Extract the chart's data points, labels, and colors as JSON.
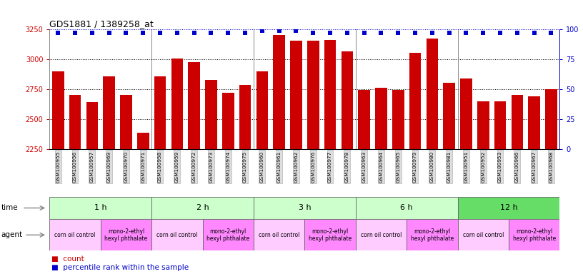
{
  "title": "GDS1881 / 1389258_at",
  "samples": [
    "GSM100955",
    "GSM100956",
    "GSM100957",
    "GSM100969",
    "GSM100970",
    "GSM100971",
    "GSM100958",
    "GSM100959",
    "GSM100972",
    "GSM100973",
    "GSM100974",
    "GSM100975",
    "GSM100960",
    "GSM100961",
    "GSM100962",
    "GSM100976",
    "GSM100977",
    "GSM100978",
    "GSM100963",
    "GSM100964",
    "GSM100965",
    "GSM100979",
    "GSM100980",
    "GSM100981",
    "GSM100951",
    "GSM100952",
    "GSM100953",
    "GSM100966",
    "GSM100967",
    "GSM100968"
  ],
  "counts": [
    2900,
    2700,
    2640,
    2860,
    2700,
    2385,
    2860,
    3005,
    2975,
    2830,
    2720,
    2785,
    2900,
    3205,
    3155,
    3155,
    3165,
    3065,
    2745,
    2760,
    2745,
    3055,
    3175,
    2805,
    2840,
    2650,
    2650,
    2700,
    2690,
    2750
  ],
  "percentile": [
    97,
    97,
    97,
    97,
    97,
    97,
    97,
    97,
    97,
    97,
    97,
    97,
    99,
    99,
    99,
    97,
    97,
    97,
    97,
    97,
    97,
    97,
    97,
    97,
    97,
    97,
    97,
    97,
    97,
    97
  ],
  "ylim_left": [
    2250,
    3250
  ],
  "ylim_right": [
    0,
    100
  ],
  "yticks_left": [
    2250,
    2500,
    2750,
    3000,
    3250
  ],
  "yticks_right": [
    0,
    25,
    50,
    75,
    100
  ],
  "bar_color": "#cc0000",
  "dot_color": "#0000cc",
  "bg_color": "#ffffff",
  "time_groups": [
    {
      "label": "1 h",
      "start": 0,
      "end": 6,
      "color": "#ccffcc"
    },
    {
      "label": "2 h",
      "start": 6,
      "end": 12,
      "color": "#ccffcc"
    },
    {
      "label": "3 h",
      "start": 12,
      "end": 18,
      "color": "#ccffcc"
    },
    {
      "label": "6 h",
      "start": 18,
      "end": 24,
      "color": "#ccffcc"
    },
    {
      "label": "12 h",
      "start": 24,
      "end": 30,
      "color": "#66dd66"
    }
  ],
  "agent_groups": [
    {
      "label": "corn oil control",
      "start": 0,
      "end": 3,
      "color": "#ffccff"
    },
    {
      "label": "mono-2-ethyl\nhexyl phthalate",
      "start": 3,
      "end": 6,
      "color": "#ff88ff"
    },
    {
      "label": "corn oil control",
      "start": 6,
      "end": 9,
      "color": "#ffccff"
    },
    {
      "label": "mono-2-ethyl\nhexyl phthalate",
      "start": 9,
      "end": 12,
      "color": "#ff88ff"
    },
    {
      "label": "corn oil control",
      "start": 12,
      "end": 15,
      "color": "#ffccff"
    },
    {
      "label": "mono-2-ethyl\nhexyl phthalate",
      "start": 15,
      "end": 18,
      "color": "#ff88ff"
    },
    {
      "label": "corn oil control",
      "start": 18,
      "end": 21,
      "color": "#ffccff"
    },
    {
      "label": "mono-2-ethyl\nhexyl phthalate",
      "start": 21,
      "end": 24,
      "color": "#ff88ff"
    },
    {
      "label": "corn oil control",
      "start": 24,
      "end": 27,
      "color": "#ffccff"
    },
    {
      "label": "mono-2-ethyl\nhexyl phthalate",
      "start": 27,
      "end": 30,
      "color": "#ff88ff"
    }
  ]
}
